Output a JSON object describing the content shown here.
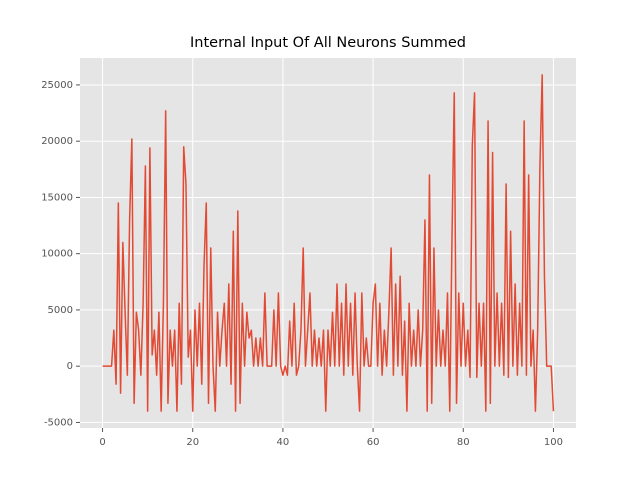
{
  "chart_data": {
    "type": "line",
    "title": "Internal Input Of All Neurons Summed",
    "x": [
      0,
      0.5,
      1,
      1.5,
      2,
      2.5,
      3,
      3.5,
      4,
      4.5,
      5,
      5.5,
      6,
      6.5,
      7,
      7.5,
      8,
      8.5,
      9,
      9.5,
      10,
      10.5,
      11,
      11.5,
      12,
      12.5,
      13,
      13.5,
      14,
      14.5,
      15,
      15.5,
      16,
      16.5,
      17,
      17.5,
      18,
      18.5,
      19,
      19.5,
      20,
      20.5,
      21,
      21.5,
      22,
      22.5,
      23,
      23.5,
      24,
      24.5,
      25,
      25.5,
      26,
      26.5,
      27,
      27.5,
      28,
      28.5,
      29,
      29.5,
      30,
      30.5,
      31,
      31.5,
      32,
      32.5,
      33,
      33.5,
      34,
      34.5,
      35,
      35.5,
      36,
      36.5,
      37,
      37.5,
      38,
      38.5,
      39,
      39.5,
      40,
      40.5,
      41,
      41.5,
      42,
      42.5,
      43,
      43.5,
      44,
      44.5,
      45,
      45.5,
      46,
      46.5,
      47,
      47.5,
      48,
      48.5,
      49,
      49.5,
      50,
      50.5,
      51,
      51.5,
      52,
      52.5,
      53,
      53.5,
      54,
      54.5,
      55,
      55.5,
      56,
      56.5,
      57,
      57.5,
      58,
      58.5,
      59,
      59.5,
      60,
      60.5,
      61,
      61.5,
      62,
      62.5,
      63,
      63.5,
      64,
      64.5,
      65,
      65.5,
      66,
      66.5,
      67,
      67.5,
      68,
      68.5,
      69,
      69.5,
      70,
      70.5,
      71,
      71.5,
      72,
      72.5,
      73,
      73.5,
      74,
      74.5,
      75,
      75.5,
      76,
      76.5,
      77,
      77.5,
      78,
      78.5,
      79,
      79.5,
      80,
      80.5,
      81,
      81.5,
      82,
      82.5,
      83,
      83.5,
      84,
      84.5,
      85,
      85.5,
      86,
      86.5,
      87,
      87.5,
      88,
      88.5,
      89,
      89.5,
      90,
      90.5,
      91,
      91.5,
      92,
      92.5,
      93,
      93.5,
      94,
      94.5,
      95,
      95.5,
      96,
      96.5,
      97,
      97.5,
      98,
      98.5,
      99,
      99.5,
      100
    ],
    "values": [
      0,
      0,
      0,
      0,
      0,
      3200,
      -1600,
      14500,
      -2400,
      11000,
      4800,
      -800,
      13000,
      20200,
      -3300,
      4800,
      3200,
      -800,
      5600,
      17800,
      -4000,
      19400,
      1000,
      3200,
      -800,
      4800,
      -4000,
      5600,
      22700,
      -3300,
      3200,
      0,
      3200,
      -4000,
      5600,
      -1600,
      19500,
      16200,
      800,
      3200,
      -4000,
      5000,
      0,
      5600,
      -1600,
      8900,
      14500,
      -3300,
      10500,
      0,
      -4000,
      4800,
      0,
      3200,
      5600,
      0,
      7300,
      -1600,
      12000,
      -4000,
      13800,
      -3300,
      5600,
      0,
      4800,
      2500,
      3200,
      0,
      2500,
      0,
      2500,
      0,
      6500,
      0,
      0,
      0,
      5000,
      0,
      6500,
      0,
      -800,
      0,
      -800,
      4000,
      0,
      5600,
      -800,
      0,
      3200,
      10500,
      0,
      3200,
      6500,
      0,
      3200,
      0,
      2500,
      0,
      3200,
      -4000,
      3200,
      0,
      4800,
      0,
      7300,
      0,
      5600,
      -800,
      7300,
      0,
      5600,
      -800,
      6500,
      0,
      -4000,
      6500,
      0,
      2500,
      0,
      0,
      5600,
      7300,
      0,
      5600,
      -800,
      3200,
      0,
      4800,
      10500,
      -800,
      7300,
      0,
      8000,
      -800,
      4000,
      -4000,
      5600,
      0,
      3200,
      0,
      5000,
      0,
      3200,
      13000,
      -4000,
      17000,
      -3300,
      10500,
      0,
      5000,
      0,
      3200,
      0,
      6500,
      -4000,
      11500,
      24300,
      -3300,
      6500,
      0,
      5600,
      0,
      3200,
      -1000,
      19600,
      24300,
      -1000,
      5600,
      0,
      5600,
      -4000,
      21800,
      -3300,
      19000,
      0,
      6500,
      0,
      5600,
      -800,
      16200,
      -1000,
      12000,
      0,
      7300,
      -800,
      5600,
      0,
      21800,
      -800,
      17000,
      0,
      3200,
      -4000,
      3200,
      17800,
      25900,
      8000,
      0,
      0,
      0,
      -4000
    ],
    "color": "#E24A33",
    "xlim": [
      -5,
      105
    ],
    "xticks": [
      0,
      20,
      40,
      60,
      80,
      100
    ],
    "ylim": [
      -5495,
      27395
    ],
    "yticks": [
      -5000,
      0,
      5000,
      10000,
      15000,
      20000,
      25000
    ],
    "grid": true
  }
}
